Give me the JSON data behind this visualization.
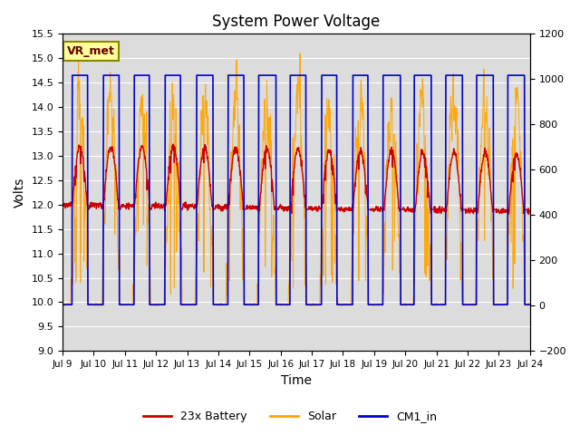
{
  "title": "System Power Voltage",
  "xlabel": "Time",
  "ylabel_left": "Volts",
  "ylabel_right": "",
  "ylim_left": [
    9.0,
    15.5
  ],
  "ylim_right": [
    -200,
    1200
  ],
  "yticks_left": [
    9.0,
    9.5,
    10.0,
    10.5,
    11.0,
    11.5,
    12.0,
    12.5,
    13.0,
    13.5,
    14.0,
    14.5,
    15.0,
    15.5
  ],
  "yticks_right": [
    -200,
    0,
    200,
    400,
    600,
    800,
    1000,
    1200
  ],
  "x_start": 9,
  "x_end": 24,
  "x_ticks": [
    9,
    10,
    11,
    12,
    13,
    14,
    15,
    16,
    17,
    18,
    19,
    20,
    21,
    22,
    23,
    24
  ],
  "x_tick_labels": [
    "Jul 9",
    "Jul 10",
    "Jul 11",
    "Jul 12",
    "Jul 13",
    "Jul 14",
    "Jul 15",
    "Jul 16",
    "Jul 17",
    "Jul 18",
    "Jul 19",
    "Jul 20",
    "Jul 21",
    "Jul 22",
    "Jul 23",
    "Jul 24"
  ],
  "battery_color": "#CC0000",
  "solar_color": "#FFA500",
  "cm1_color": "#0000CC",
  "bg_color": "#DCDCDC",
  "grid_color": "#FFFFFF",
  "annotation_text": "VR_met",
  "annotation_box_color": "#FFFF99",
  "annotation_border_color": "#888800",
  "legend_entries": [
    "23x Battery",
    "Solar",
    "CM1_in"
  ]
}
